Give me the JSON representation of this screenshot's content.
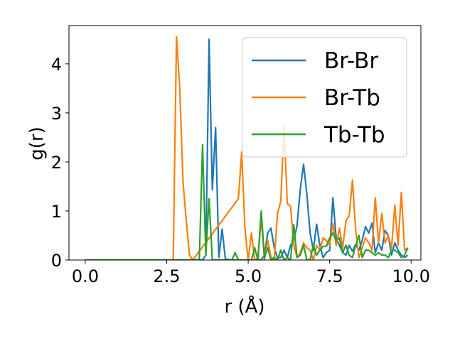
{
  "chart_data": {
    "type": "line",
    "title": "",
    "xlabel": "r (Å)",
    "ylabel": "g(r)",
    "xlim": [
      -0.5,
      10.3
    ],
    "ylim": [
      0,
      4.78
    ],
    "xticks": [
      "0.0",
      "2.5",
      "5.0",
      "7.5",
      "10.0"
    ],
    "yticks": [
      "0",
      "1",
      "2",
      "3",
      "4"
    ],
    "grid": false,
    "legend_position": "top-right",
    "series": [
      {
        "name": "Br-Br",
        "color": "#1f77b4",
        "x": [
          0.0,
          3.6,
          3.7,
          3.8,
          3.9,
          4.0,
          4.1,
          4.2,
          4.3,
          4.4,
          4.5,
          5.4,
          5.5,
          5.6,
          5.7,
          5.8,
          5.9,
          6.0,
          6.1,
          6.2,
          6.3,
          6.4,
          6.5,
          6.6,
          6.7,
          6.8,
          6.9,
          7.0,
          7.1,
          7.2,
          7.3,
          7.4,
          7.5,
          7.6,
          7.7,
          7.8,
          7.9,
          8.0,
          8.1,
          8.2,
          8.3,
          8.4,
          8.5,
          8.6,
          8.7,
          8.8,
          8.9,
          9.0,
          9.1,
          9.2,
          9.3,
          9.4,
          9.5,
          9.6,
          9.7,
          9.8,
          9.9
        ],
        "y": [
          0,
          0,
          0.1,
          4.5,
          1.43,
          2.7,
          0.05,
          0.63,
          0.02,
          0.01,
          0,
          0,
          0.1,
          0.55,
          0.65,
          0.25,
          0.05,
          0.05,
          0.2,
          0.05,
          0.3,
          0.4,
          0.7,
          1.45,
          1.95,
          1.35,
          0.55,
          0.2,
          0.73,
          0.3,
          0.05,
          0.15,
          0.2,
          1.27,
          0.45,
          0.3,
          0.15,
          0.1,
          0.3,
          0.18,
          0.32,
          0.2,
          0.4,
          0.68,
          0.55,
          0.75,
          0.15,
          0.35,
          0.2,
          0.6,
          0.5,
          0.1,
          0.35,
          0.2,
          0.1,
          0.05,
          0.1
        ]
      },
      {
        "name": "Br-Tb",
        "color": "#ff7f0e",
        "x": [
          0.0,
          2.7,
          2.8,
          2.9,
          3.0,
          3.1,
          3.2,
          3.3,
          4.7,
          4.8,
          4.9,
          5.0,
          5.1,
          5.2,
          5.3,
          5.4,
          5.5,
          5.6,
          5.7,
          5.8,
          5.9,
          6.0,
          6.1,
          6.2,
          6.3,
          6.4,
          6.5,
          6.6,
          6.7,
          6.8,
          6.9,
          7.0,
          7.1,
          7.2,
          7.3,
          7.4,
          7.5,
          7.6,
          7.7,
          7.8,
          7.9,
          8.0,
          8.1,
          8.2,
          8.3,
          8.4,
          8.5,
          8.6,
          8.7,
          8.8,
          8.9,
          9.0,
          9.1,
          9.2,
          9.3,
          9.4,
          9.5,
          9.6,
          9.7,
          9.8,
          9.9
        ],
        "y": [
          0,
          0,
          4.55,
          3.5,
          1.6,
          0.8,
          0.1,
          0,
          1.25,
          2.2,
          0.65,
          0,
          0.55,
          0,
          0.05,
          0.85,
          0,
          0.4,
          0.05,
          0,
          0.95,
          1.2,
          2.75,
          1.15,
          1.1,
          0.3,
          0.05,
          0.15,
          0.35,
          0.25,
          0.2,
          0,
          0.3,
          0.2,
          0.45,
          0.4,
          0.3,
          0.75,
          0.3,
          0.65,
          0.25,
          0.8,
          0.9,
          1.63,
          0.6,
          0.05,
          0.25,
          0.45,
          0.35,
          0.2,
          1.27,
          0.35,
          0.95,
          0.35,
          0.5,
          0.25,
          1.12,
          0.3,
          1.38,
          0.2,
          0.25
        ]
      },
      {
        "name": "Tb-Tb",
        "color": "#2ca02c",
        "x": [
          0.0,
          3.4,
          3.5,
          3.6,
          3.7,
          3.8,
          3.9,
          4.0,
          4.5,
          4.6,
          4.7,
          5.1,
          5.2,
          5.3,
          5.4,
          5.5,
          5.6,
          5.7,
          5.8,
          5.9,
          6.0,
          6.1,
          6.2,
          6.3,
          6.4,
          6.5,
          6.6,
          6.7,
          6.8,
          6.9,
          7.0,
          7.1,
          7.2,
          7.3,
          7.4,
          7.5,
          7.6,
          7.7,
          7.8,
          7.9,
          8.0,
          8.1,
          8.2,
          8.3,
          8.4,
          8.5,
          8.6,
          8.7,
          8.8,
          8.9,
          9.0,
          9.1,
          9.2,
          9.3,
          9.4,
          9.5,
          9.6,
          9.7,
          9.8,
          9.9
        ],
        "y": [
          0,
          0,
          0,
          2.35,
          0.1,
          1.25,
          0,
          0,
          0,
          0.15,
          0,
          0,
          0.25,
          0,
          1.0,
          0.05,
          0.25,
          0,
          0.05,
          0,
          0.2,
          0,
          0.05,
          0,
          0.72,
          0.05,
          0.1,
          0.3,
          0,
          0,
          0.3,
          0.1,
          0.2,
          0.28,
          0.28,
          0.45,
          0.55,
          0.4,
          0.45,
          0.15,
          0.3,
          0.1,
          0.05,
          0.3,
          0.5,
          0.05,
          0.2,
          0.2,
          0.15,
          0.1,
          0.15,
          0.1,
          0.1,
          0.05,
          0.2,
          0.2,
          0.15,
          0.05,
          0.1,
          0.25
        ]
      }
    ]
  }
}
